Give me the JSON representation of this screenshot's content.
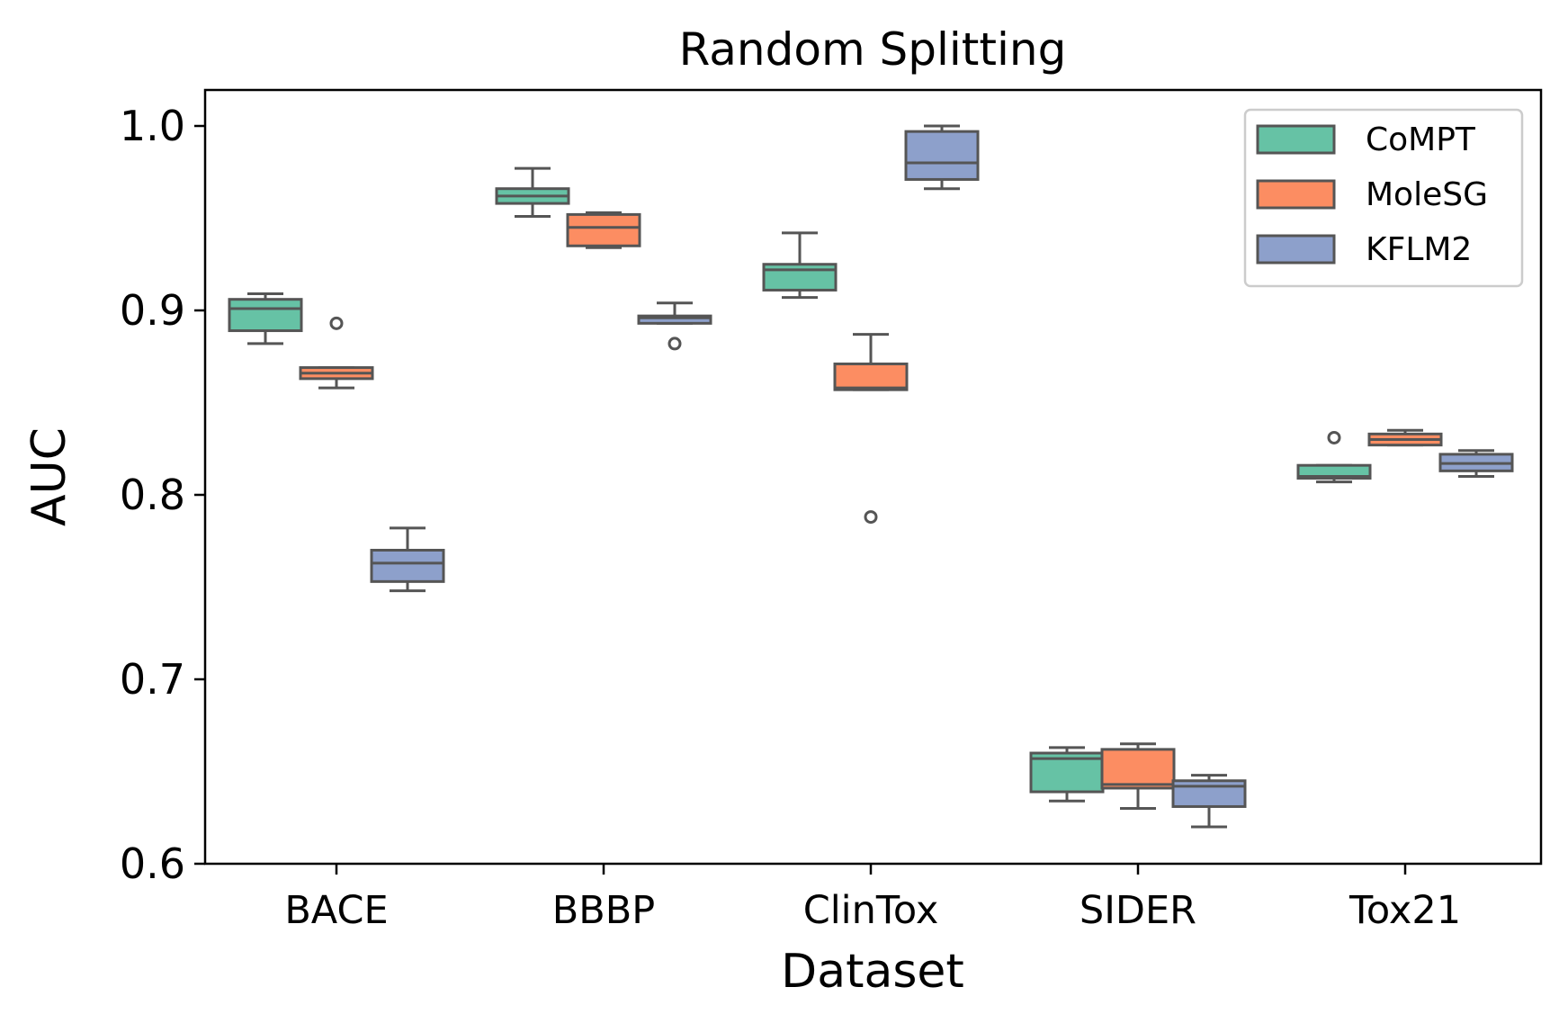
{
  "chart_data": {
    "type": "box",
    "title": "Random Splitting",
    "xlabel": "Dataset",
    "ylabel": "AUC",
    "ylim": [
      0.6,
      1.02
    ],
    "yticks": [
      "0.6",
      "0.7",
      "0.8",
      "0.9",
      "1.0"
    ],
    "ytick_values": [
      0.6,
      0.7,
      0.8,
      0.9,
      1.0
    ],
    "grid": false,
    "legend_position": "top-right",
    "categories": [
      "BACE",
      "BBBP",
      "ClinTox",
      "SIDER",
      "Tox21"
    ],
    "series": [
      {
        "name": "CoMPT",
        "color": "#66c2a5",
        "boxes": [
          {
            "min": 0.882,
            "q1": 0.889,
            "median": 0.901,
            "q3": 0.906,
            "max": 0.909,
            "outliers": []
          },
          {
            "min": 0.951,
            "q1": 0.958,
            "median": 0.962,
            "q3": 0.966,
            "max": 0.977,
            "outliers": []
          },
          {
            "min": 0.907,
            "q1": 0.911,
            "median": 0.922,
            "q3": 0.925,
            "max": 0.942,
            "outliers": []
          },
          {
            "min": 0.634,
            "q1": 0.639,
            "median": 0.657,
            "q3": 0.66,
            "max": 0.663,
            "outliers": []
          },
          {
            "min": 0.807,
            "q1": 0.809,
            "median": 0.81,
            "q3": 0.816,
            "max": 0.816,
            "outliers": [
              0.831
            ]
          }
        ]
      },
      {
        "name": "MoleSG",
        "color": "#fc8d62",
        "boxes": [
          {
            "min": 0.858,
            "q1": 0.863,
            "median": 0.866,
            "q3": 0.869,
            "max": 0.869,
            "outliers": [
              0.893
            ]
          },
          {
            "min": 0.934,
            "q1": 0.935,
            "median": 0.945,
            "q3": 0.952,
            "max": 0.953,
            "outliers": []
          },
          {
            "min": 0.857,
            "q1": 0.857,
            "median": 0.858,
            "q3": 0.871,
            "max": 0.887,
            "outliers": [
              0.788
            ]
          },
          {
            "min": 0.63,
            "q1": 0.641,
            "median": 0.643,
            "q3": 0.662,
            "max": 0.665,
            "outliers": []
          },
          {
            "min": 0.827,
            "q1": 0.827,
            "median": 0.83,
            "q3": 0.833,
            "max": 0.835,
            "outliers": []
          }
        ]
      },
      {
        "name": "KFLM2",
        "color": "#8da0cb",
        "boxes": [
          {
            "min": 0.748,
            "q1": 0.753,
            "median": 0.763,
            "q3": 0.77,
            "max": 0.782,
            "outliers": []
          },
          {
            "min": 0.893,
            "q1": 0.893,
            "median": 0.896,
            "q3": 0.897,
            "max": 0.904,
            "outliers": [
              0.882
            ]
          },
          {
            "min": 0.966,
            "q1": 0.971,
            "median": 0.98,
            "q3": 0.997,
            "max": 1.0,
            "outliers": []
          },
          {
            "min": 0.62,
            "q1": 0.631,
            "median": 0.642,
            "q3": 0.645,
            "max": 0.648,
            "outliers": []
          },
          {
            "min": 0.81,
            "q1": 0.813,
            "median": 0.817,
            "q3": 0.822,
            "max": 0.824,
            "outliers": []
          }
        ]
      }
    ]
  }
}
